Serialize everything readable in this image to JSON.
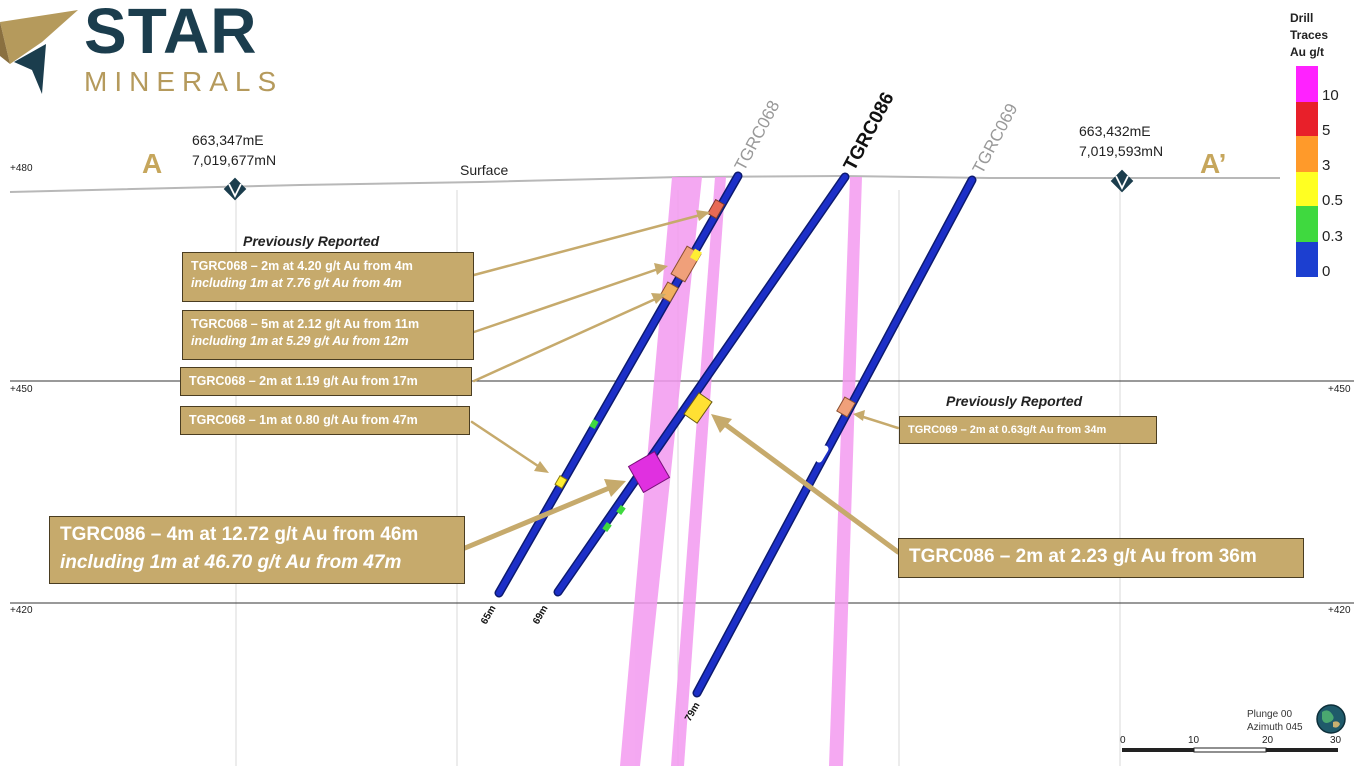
{
  "logo": {
    "word_main": "STAR",
    "word_sub": "MINERALS",
    "colors": {
      "dark": "#1b3d4d",
      "gold": "#b59a5c"
    }
  },
  "section": {
    "start_label": "A",
    "end_label": "A’",
    "surface_label": "Surface"
  },
  "coordinates": {
    "left": {
      "easting": "663,347mE",
      "northing": "7,019,677mN"
    },
    "right": {
      "easting": "663,432mE",
      "northing": "7,019,593mN"
    }
  },
  "rl_levels": {
    "left": [
      "+480",
      "+450",
      "+420"
    ],
    "right": [
      "+450",
      "+420"
    ]
  },
  "holes": [
    {
      "name": "TGRC068",
      "depth_label": "65m",
      "highlight": false
    },
    {
      "name": "TGRC086",
      "depth_label": "69m",
      "highlight": true
    },
    {
      "name": "TGRC069",
      "depth_label": "79m",
      "highlight": false
    }
  ],
  "annotations": {
    "previously_reported_left": "Previously Reported",
    "previously_reported_right": "Previously Reported",
    "i068_1_line1": "TGRC068 – 2m at 4.20 g/t Au from  4m",
    "i068_1_line2": "including 1m at 7.76 g/t Au from 4m",
    "i068_2_line1": "TGRC068 – 5m at 2.12 g/t Au from  11m",
    "i068_2_line2": "including 1m at 5.29 g/t Au from 12m",
    "i068_3": "TGRC068 – 2m at 1.19 g/t Au from  17m",
    "i068_4": "TGRC068 – 1m at 0.80 g/t Au from  47m",
    "i069": "TGRC069 – 2m at 0.63g/t Au from 34m",
    "i086_main_line1": "TGRC086 – 4m at 12.72 g/t Au from 46m",
    "i086_main_line2": "including 1m at 46.70 g/t Au from 47m",
    "i086_36m": "TGRC086 – 2m at 2.23 g/t Au from 36m"
  },
  "legend": {
    "title_lines": [
      "Drill",
      "Traces",
      "Au g/t"
    ],
    "bins": [
      {
        "label": "10",
        "color": "#ff22ff"
      },
      {
        "label": "5",
        "color": "#e8202a"
      },
      {
        "label": "3",
        "color": "#ff9a2a"
      },
      {
        "label": "0.5",
        "color": "#ffff22"
      },
      {
        "label": "0.3",
        "color": "#3fd93f"
      },
      {
        "label": "0",
        "color": "#1c3fd0"
      }
    ]
  },
  "view": {
    "plunge": "Plunge 00",
    "azimuth": "Azimuth 045"
  },
  "scale_bar": {
    "ticks": [
      "0",
      "10",
      "20",
      "30"
    ]
  },
  "colors": {
    "trace_blue": "#1c2fc8",
    "zone_pink": "#f39af0",
    "box_gold": "#c6aa6c"
  }
}
